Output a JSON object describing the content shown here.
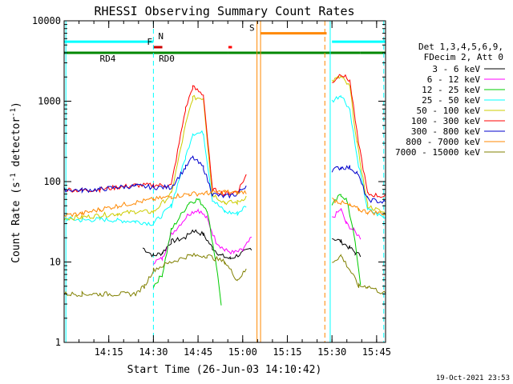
{
  "chart_data": {
    "type": "line",
    "title": "RHESSI Observing Summary Count Rates",
    "xlabel": "Start Time (26-Jun-03 14:10:42)",
    "ylabel": "Count Rate (s⁻¹ detector⁻¹)",
    "ylabel_main": "Count Rate (s",
    "ylabel_mid": " detector",
    "ylabel_end": ")",
    "ylabel_sup": "-1",
    "yscale": "log",
    "ylim": [
      1,
      10000
    ],
    "xlim_minutes": [
      14.0,
      15.8
    ],
    "xticks": [
      {
        "v": 14.25,
        "label": "14:15"
      },
      {
        "v": 14.5,
        "label": "14:30"
      },
      {
        "v": 14.75,
        "label": "14:45"
      },
      {
        "v": 15.0,
        "label": "15:00"
      },
      {
        "v": 15.25,
        "label": "15:15"
      },
      {
        "v": 15.5,
        "label": "15:30"
      },
      {
        "v": 15.75,
        "label": "15:45"
      }
    ],
    "yticks": [
      {
        "v": 1,
        "label": "1"
      },
      {
        "v": 10,
        "label": "10"
      },
      {
        "v": 100,
        "label": "100"
      },
      {
        "v": 1000,
        "label": "1000"
      },
      {
        "v": 10000,
        "label": "10000"
      }
    ],
    "legend_header": [
      "Det 1,3,4,5,6,9,",
      "FDecim 2, Att 0"
    ],
    "series": [
      {
        "name": "3 - 6 keV",
        "color": "#000000",
        "points": [
          [
            14.44,
            15
          ],
          [
            14.5,
            12
          ],
          [
            14.55,
            13
          ],
          [
            14.6,
            18
          ],
          [
            14.68,
            20
          ],
          [
            14.72,
            25
          ],
          [
            14.78,
            22
          ],
          [
            14.83,
            15
          ],
          [
            14.88,
            12
          ],
          [
            14.93,
            11
          ],
          [
            15.0,
            13
          ],
          [
            15.05,
            15
          ],
          [
            15.5,
            20
          ],
          [
            15.55,
            18
          ],
          [
            15.6,
            15
          ],
          [
            15.63,
            13
          ],
          [
            15.66,
            12
          ]
        ]
      },
      {
        "name": "6 - 12 keV",
        "color": "#ff00ff",
        "points": [
          [
            14.5,
            10
          ],
          [
            14.55,
            11
          ],
          [
            14.6,
            22
          ],
          [
            14.7,
            40
          ],
          [
            14.75,
            45
          ],
          [
            14.8,
            35
          ],
          [
            14.85,
            18
          ],
          [
            14.9,
            14
          ],
          [
            14.95,
            13
          ],
          [
            15.0,
            14
          ],
          [
            15.05,
            20
          ],
          [
            15.5,
            35
          ],
          [
            15.55,
            45
          ],
          [
            15.58,
            30
          ],
          [
            15.62,
            25
          ],
          [
            15.66,
            20
          ]
        ]
      },
      {
        "name": "12 - 25 keV",
        "color": "#00cc00",
        "points": [
          [
            14.5,
            5
          ],
          [
            14.55,
            7
          ],
          [
            14.6,
            25
          ],
          [
            14.7,
            55
          ],
          [
            14.75,
            60
          ],
          [
            14.8,
            45
          ],
          [
            14.85,
            10
          ],
          [
            14.88,
            3
          ],
          [
            15.5,
            50
          ],
          [
            15.55,
            70
          ],
          [
            15.58,
            60
          ],
          [
            15.62,
            25
          ],
          [
            15.66,
            5
          ]
        ]
      },
      {
        "name": "25 - 50 keV",
        "color": "#00ffff",
        "points": [
          [
            14.0,
            35
          ],
          [
            14.1,
            33
          ],
          [
            14.2,
            34
          ],
          [
            14.3,
            33
          ],
          [
            14.4,
            32
          ],
          [
            14.5,
            30
          ],
          [
            14.6,
            50
          ],
          [
            14.68,
            200
          ],
          [
            14.72,
            400
          ],
          [
            14.78,
            400
          ],
          [
            14.83,
            60
          ],
          [
            14.9,
            42
          ],
          [
            14.97,
            40
          ],
          [
            15.02,
            50
          ],
          [
            15.5,
            1000
          ],
          [
            15.55,
            1200
          ],
          [
            15.6,
            800
          ],
          [
            15.64,
            200
          ],
          [
            15.7,
            45
          ],
          [
            15.8,
            35
          ]
        ]
      },
      {
        "name": "50 - 100 keV",
        "color": "#cccc00",
        "points": [
          [
            14.0,
            35
          ],
          [
            14.1,
            36
          ],
          [
            14.2,
            38
          ],
          [
            14.3,
            40
          ],
          [
            14.4,
            42
          ],
          [
            14.5,
            42
          ],
          [
            14.6,
            70
          ],
          [
            14.68,
            500
          ],
          [
            14.72,
            1100
          ],
          [
            14.78,
            1100
          ],
          [
            14.83,
            70
          ],
          [
            14.9,
            55
          ],
          [
            14.97,
            55
          ],
          [
            15.02,
            65
          ],
          [
            15.5,
            1800
          ],
          [
            15.55,
            2000
          ],
          [
            15.6,
            1500
          ],
          [
            15.64,
            300
          ],
          [
            15.7,
            50
          ],
          [
            15.8,
            40
          ]
        ]
      },
      {
        "name": "100 - 300 keV",
        "color": "#ff0000",
        "points": [
          [
            14.0,
            80
          ],
          [
            14.1,
            78
          ],
          [
            14.2,
            80
          ],
          [
            14.3,
            85
          ],
          [
            14.4,
            90
          ],
          [
            14.5,
            90
          ],
          [
            14.6,
            90
          ],
          [
            14.68,
            800
          ],
          [
            14.72,
            1500
          ],
          [
            14.78,
            1200
          ],
          [
            14.83,
            80
          ],
          [
            14.9,
            70
          ],
          [
            14.97,
            75
          ],
          [
            15.02,
            120
          ],
          [
            15.5,
            1700
          ],
          [
            15.55,
            2200
          ],
          [
            15.6,
            1800
          ],
          [
            15.64,
            400
          ],
          [
            15.7,
            70
          ],
          [
            15.8,
            65
          ]
        ]
      },
      {
        "name": "300 - 800 keV",
        "color": "#0000cc",
        "points": [
          [
            14.0,
            80
          ],
          [
            14.1,
            78
          ],
          [
            14.2,
            80
          ],
          [
            14.3,
            85
          ],
          [
            14.4,
            88
          ],
          [
            14.5,
            85
          ],
          [
            14.6,
            85
          ],
          [
            14.68,
            150
          ],
          [
            14.72,
            200
          ],
          [
            14.78,
            150
          ],
          [
            14.83,
            70
          ],
          [
            14.9,
            65
          ],
          [
            14.97,
            70
          ],
          [
            15.02,
            90
          ],
          [
            15.5,
            140
          ],
          [
            15.55,
            150
          ],
          [
            15.6,
            150
          ],
          [
            15.64,
            130
          ],
          [
            15.7,
            60
          ],
          [
            15.8,
            55
          ]
        ]
      },
      {
        "name": "800 - 7000 keV",
        "color": "#ff8800",
        "points": [
          [
            14.0,
            38
          ],
          [
            14.1,
            40
          ],
          [
            14.2,
            45
          ],
          [
            14.3,
            50
          ],
          [
            14.4,
            55
          ],
          [
            14.5,
            60
          ],
          [
            14.6,
            65
          ],
          [
            14.7,
            70
          ],
          [
            14.8,
            72
          ],
          [
            14.9,
            75
          ],
          [
            14.97,
            72
          ],
          [
            15.02,
            75
          ],
          [
            15.5,
            60
          ],
          [
            15.55,
            55
          ],
          [
            15.6,
            50
          ],
          [
            15.65,
            45
          ],
          [
            15.7,
            42
          ],
          [
            15.8,
            40
          ]
        ]
      },
      {
        "name": "7000 - 15000 keV",
        "color": "#808000",
        "points": [
          [
            14.0,
            4
          ],
          [
            14.1,
            4
          ],
          [
            14.2,
            4
          ],
          [
            14.3,
            4
          ],
          [
            14.4,
            4
          ],
          [
            14.45,
            5
          ],
          [
            14.5,
            8
          ],
          [
            14.6,
            10
          ],
          [
            14.7,
            12
          ],
          [
            14.8,
            12
          ],
          [
            14.9,
            10
          ],
          [
            14.97,
            6
          ],
          [
            15.02,
            8
          ],
          [
            15.5,
            10
          ],
          [
            15.55,
            12
          ],
          [
            15.6,
            8
          ],
          [
            15.65,
            5
          ],
          [
            15.7,
            5
          ],
          [
            15.8,
            4
          ]
        ]
      }
    ],
    "flag_bars": [
      {
        "label": "N",
        "color": "#00ffff",
        "value": 5500,
        "segments": [
          [
            14.0,
            14.5
          ],
          [
            15.5,
            15.8
          ]
        ]
      },
      {
        "label": "F",
        "color": "#cc0000",
        "value": 4700,
        "segments": [
          [
            14.5,
            14.55
          ]
        ]
      },
      {
        "label": "RD0",
        "color": "#cc0000",
        "value": 4000,
        "segments": [
          [
            14.52,
            14.58
          ]
        ]
      },
      {
        "label": "",
        "color": "#ff0000",
        "value": 4700,
        "segments": [
          [
            14.92,
            14.94
          ]
        ]
      },
      {
        "label": "S",
        "color": "#ff8800",
        "value": 7000,
        "segments": [
          [
            15.1,
            15.47
          ]
        ]
      },
      {
        "label": "RD4",
        "color": "#008800",
        "value": 4000,
        "segments": [
          [
            14.0,
            14.92
          ],
          [
            14.92,
            15.45
          ],
          [
            15.45,
            15.66
          ],
          [
            15.66,
            15.8
          ]
        ]
      }
    ],
    "vlines": [
      {
        "v": 14.01,
        "color": "#00ffff",
        "style": "solid"
      },
      {
        "v": 14.5,
        "color": "#00ffff",
        "style": "dashed"
      },
      {
        "v": 15.08,
        "color": "#ff8800",
        "style": "solid"
      },
      {
        "v": 15.1,
        "color": "#ff8800",
        "style": "solid"
      },
      {
        "v": 15.46,
        "color": "#ff8800",
        "style": "dashed"
      },
      {
        "v": 15.49,
        "color": "#00ffff",
        "style": "solid"
      },
      {
        "v": 15.79,
        "color": "#00ffff",
        "style": "dashed"
      }
    ]
  },
  "footer": {
    "timestamp": "19-Oct-2021 23:53"
  }
}
